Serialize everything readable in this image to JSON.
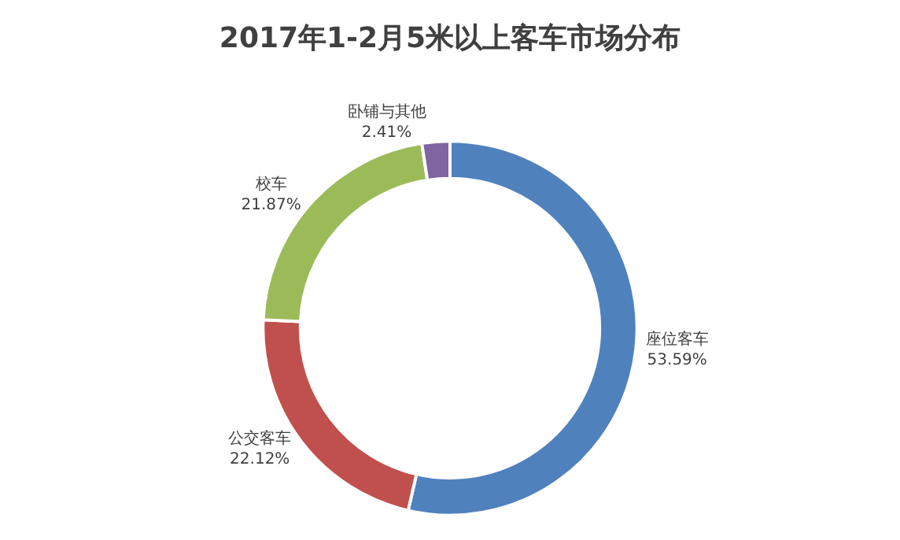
{
  "chart_data": {
    "type": "donut",
    "title": "2017年1-2月5米以上客车市场分布",
    "categories": [
      "座位客车",
      "公交客车",
      "校车",
      "卧铺与其他"
    ],
    "values": [
      53.59,
      22.12,
      21.87,
      2.41
    ],
    "value_labels": [
      "53.59%",
      "22.12%",
      "21.87%",
      "2.41%"
    ],
    "colors": [
      "#4f81bd",
      "#c0504d",
      "#9bbb59",
      "#8064a2"
    ],
    "legend": false
  }
}
